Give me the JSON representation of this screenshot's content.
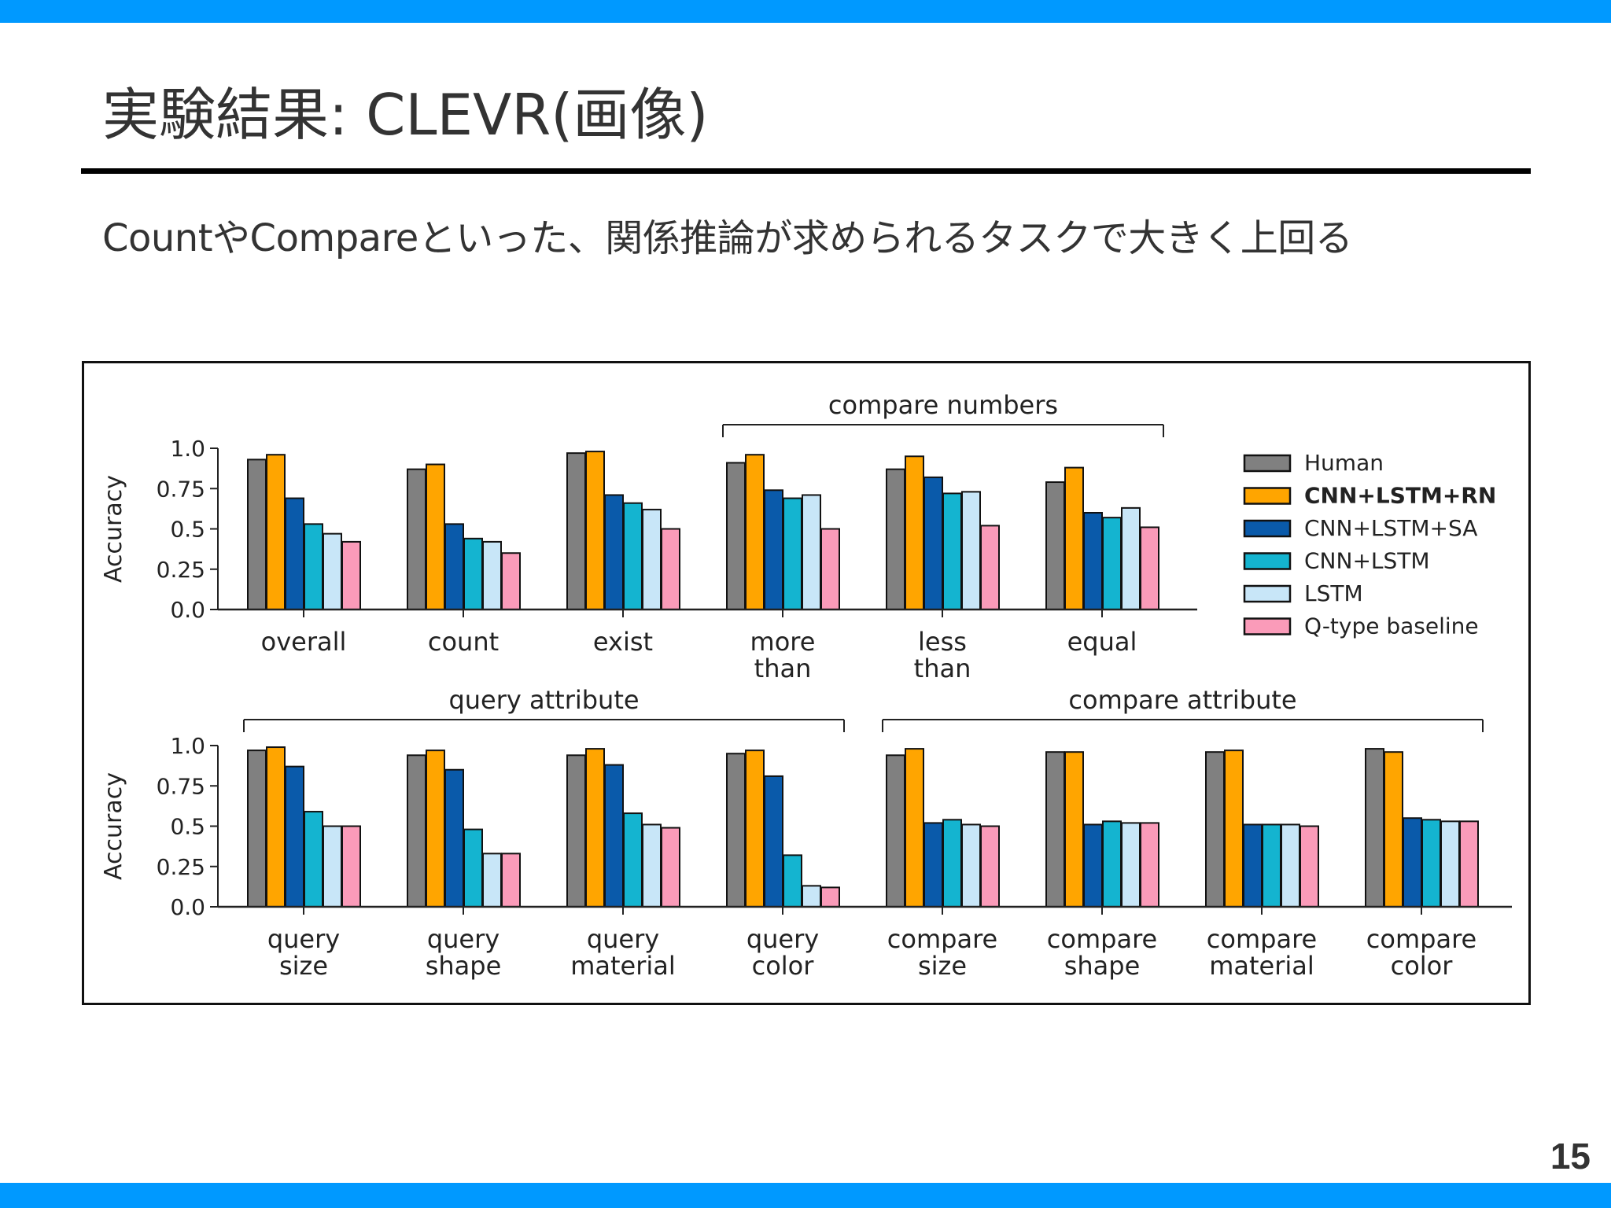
{
  "slide": {
    "title": "実験結果: CLEVR(画像)",
    "subtitle": "CountやCompareといった、関係推論が求められるタスクで大きく上回る",
    "page_number": "15",
    "colors": {
      "band": "#0099ff",
      "rule": "#000000"
    }
  },
  "chart_data": {
    "type": "bar",
    "legend_position": "right",
    "series": [
      {
        "name": "Human",
        "color": "#808080",
        "bold": false
      },
      {
        "name": "CNN+LSTM+RN",
        "color": "#ffa500",
        "bold": true
      },
      {
        "name": "CNN+LSTM+SA",
        "color": "#0a5aaa",
        "bold": false
      },
      {
        "name": "CNN+LSTM",
        "color": "#14b4d0",
        "bold": false
      },
      {
        "name": "LSTM",
        "color": "#c8e6f8",
        "bold": false
      },
      {
        "name": "Q-type baseline",
        "color": "#fa9bb9",
        "bold": false
      }
    ],
    "panels": [
      {
        "id": "top",
        "ylabel": "Accuracy",
        "ylim": [
          0,
          1.0
        ],
        "yticks": [
          "0.0",
          "0.25",
          "0.5",
          "0.75",
          "1.0"
        ],
        "ytick_values": [
          0,
          0.25,
          0.5,
          0.75,
          1.0
        ],
        "categories": [
          {
            "label": [
              "overall"
            ],
            "values": [
              0.93,
              0.96,
              0.69,
              0.53,
              0.47,
              0.42
            ]
          },
          {
            "label": [
              "count"
            ],
            "values": [
              0.87,
              0.9,
              0.53,
              0.44,
              0.42,
              0.35
            ]
          },
          {
            "label": [
              "exist"
            ],
            "values": [
              0.97,
              0.98,
              0.71,
              0.66,
              0.62,
              0.5
            ]
          },
          {
            "label": [
              "more",
              "than"
            ],
            "values": [
              0.91,
              0.96,
              0.74,
              0.69,
              0.71,
              0.5
            ]
          },
          {
            "label": [
              "less",
              "than"
            ],
            "values": [
              0.87,
              0.95,
              0.82,
              0.72,
              0.73,
              0.52
            ]
          },
          {
            "label": [
              "equal"
            ],
            "values": [
              0.79,
              0.88,
              0.6,
              0.57,
              0.63,
              0.51
            ]
          }
        ],
        "groups": [
          {
            "label": "compare numbers",
            "from": 3,
            "to": 5
          }
        ]
      },
      {
        "id": "bottom",
        "ylabel": "Accuracy",
        "ylim": [
          0,
          1.0
        ],
        "yticks": [
          "0.0",
          "0.25",
          "0.5",
          "0.75",
          "1.0"
        ],
        "ytick_values": [
          0,
          0.25,
          0.5,
          0.75,
          1.0
        ],
        "categories": [
          {
            "label": [
              "query",
              "size"
            ],
            "values": [
              0.97,
              0.99,
              0.87,
              0.59,
              0.5,
              0.5
            ]
          },
          {
            "label": [
              "query",
              "shape"
            ],
            "values": [
              0.94,
              0.97,
              0.85,
              0.48,
              0.33,
              0.33
            ]
          },
          {
            "label": [
              "query",
              "material"
            ],
            "values": [
              0.94,
              0.98,
              0.88,
              0.58,
              0.51,
              0.49
            ]
          },
          {
            "label": [
              "query",
              "color"
            ],
            "values": [
              0.95,
              0.97,
              0.81,
              0.32,
              0.13,
              0.12
            ]
          },
          {
            "label": [
              "compare",
              "size"
            ],
            "values": [
              0.94,
              0.98,
              0.52,
              0.54,
              0.51,
              0.5
            ]
          },
          {
            "label": [
              "compare",
              "shape"
            ],
            "values": [
              0.96,
              0.96,
              0.51,
              0.53,
              0.52,
              0.52
            ]
          },
          {
            "label": [
              "compare",
              "material"
            ],
            "values": [
              0.96,
              0.97,
              0.51,
              0.51,
              0.51,
              0.5
            ]
          },
          {
            "label": [
              "compare",
              "color"
            ],
            "values": [
              0.98,
              0.96,
              0.55,
              0.54,
              0.53,
              0.53
            ]
          }
        ],
        "groups": [
          {
            "label": "query attribute",
            "from": 0,
            "to": 3
          },
          {
            "label": "compare attribute",
            "from": 4,
            "to": 7
          }
        ]
      }
    ]
  }
}
